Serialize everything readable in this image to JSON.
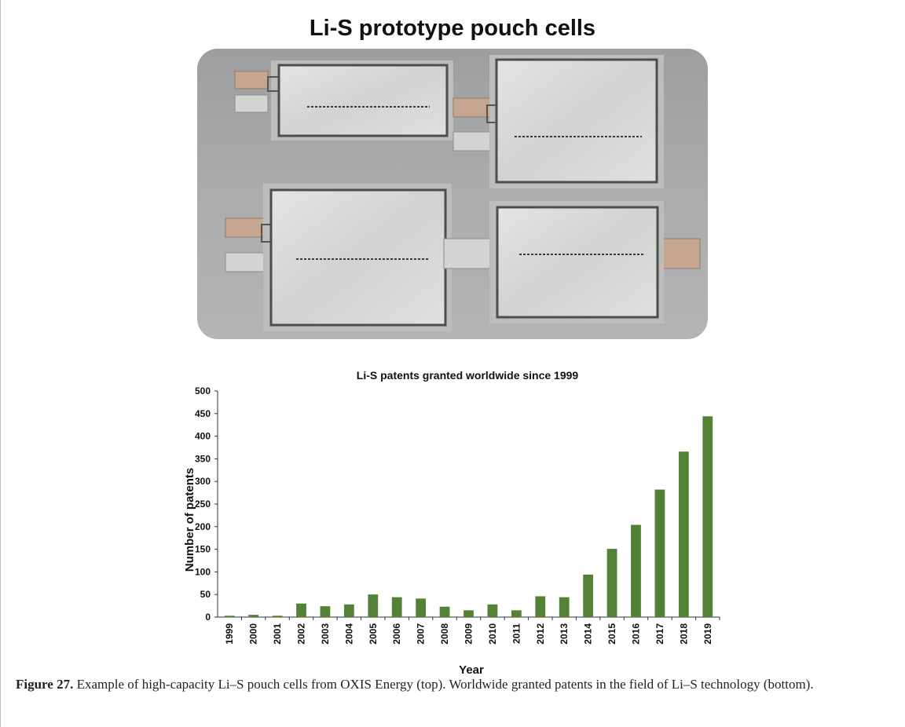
{
  "figure": {
    "photo_title": "Li-S prototype pouch cells",
    "caption_label": "Figure 27.",
    "caption_text": " Example of high-capacity Li–S pouch cells from OXIS Energy (top). Worldwide granted patents in the field of Li–S technology (bottom)."
  },
  "colors": {
    "bar": "#538135",
    "photo_background": "#a7a7a9",
    "pouch": "#d8d9d7",
    "tab_copper": "#c6a690",
    "tab_aluminium": "#d4d5d3"
  },
  "chart_data": {
    "type": "bar",
    "title": "Li-S patents granted worldwide since 1999",
    "xlabel": "Year",
    "ylabel": "Number of patents",
    "ylim": [
      0,
      500
    ],
    "yticks": [
      0,
      50,
      100,
      150,
      200,
      250,
      300,
      350,
      400,
      450,
      500
    ],
    "grid": false,
    "legend": "none",
    "categories": [
      "1999",
      "2000",
      "2001",
      "2002",
      "2003",
      "2004",
      "2005",
      "2006",
      "2007",
      "2008",
      "2009",
      "2010",
      "2011",
      "2012",
      "2013",
      "2014",
      "2015",
      "2016",
      "2017",
      "2018",
      "2019"
    ],
    "values": [
      3,
      5,
      3,
      30,
      24,
      28,
      50,
      44,
      41,
      23,
      15,
      28,
      15,
      46,
      44,
      94,
      151,
      204,
      282,
      366,
      444
    ]
  }
}
